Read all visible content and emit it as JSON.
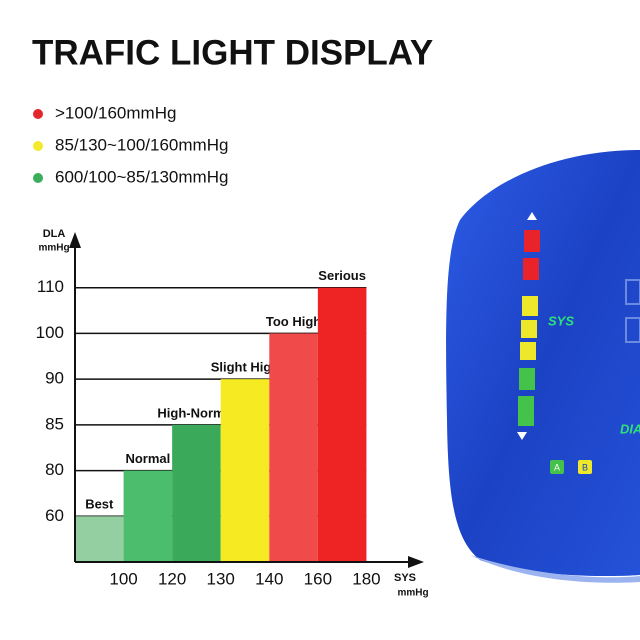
{
  "title": "TRAFIC LIGHT DISPLAY",
  "legend": [
    {
      "color": "#e3262a",
      "label": ">100/160mmHg"
    },
    {
      "color": "#f2ea2a",
      "label": "85/130~100/160mmHg"
    },
    {
      "color": "#3aae5c",
      "label": "600/100~85/130mmHg"
    }
  ],
  "device": {
    "sys": "SYS",
    "dia": "DIA",
    "user_a": "A",
    "user_b": "B"
  },
  "chart_data": {
    "type": "bar",
    "ylabel": [
      "DLA",
      "mmHg"
    ],
    "xlabel": [
      "SYS",
      "mmHg"
    ],
    "categories": [
      "Best",
      "Normal",
      "High-Normal",
      "Slight High",
      "Too High",
      "Serious"
    ],
    "values": [
      60,
      80,
      85,
      90,
      100,
      110
    ],
    "bins": [
      80,
      100,
      120,
      130,
      140,
      160,
      180
    ],
    "colors": [
      "#93cfa0",
      "#4cbd6c",
      "#3aa95a",
      "#f6ea22",
      "#f04a4a",
      "#ee2424"
    ],
    "xlim": [
      80,
      190
    ],
    "xticks": [
      100,
      120,
      130,
      140,
      160,
      180
    ],
    "ylim": [
      50,
      120
    ],
    "yticks": [
      60,
      80,
      85,
      90,
      100,
      110
    ],
    "grid": true
  }
}
